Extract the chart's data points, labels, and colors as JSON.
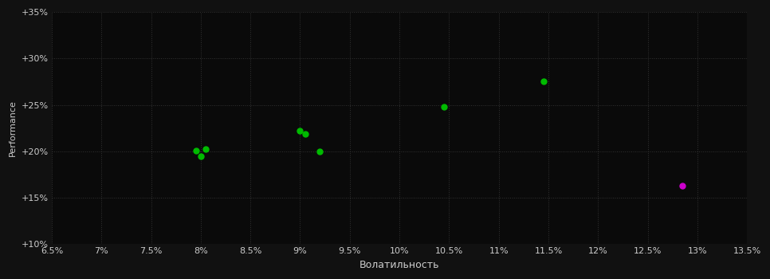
{
  "background_color": "#111111",
  "plot_bg_color": "#0a0a0a",
  "left_bg_color": "#1e1e1e",
  "grid_color": "#333333",
  "text_color": "#cccccc",
  "xlabel": "Волатильность",
  "ylabel": "Performance",
  "xlim": [
    0.065,
    0.135
  ],
  "ylim": [
    0.1,
    0.35
  ],
  "xticks": [
    0.065,
    0.07,
    0.075,
    0.08,
    0.085,
    0.09,
    0.095,
    0.1,
    0.105,
    0.11,
    0.115,
    0.12,
    0.125,
    0.13,
    0.135
  ],
  "xtick_labels": [
    "6.5%",
    "7%",
    "7.5%",
    "8%",
    "8.5%",
    "9%",
    "9.5%",
    "10%",
    "10.5%",
    "11%",
    "11.5%",
    "12%",
    "12.5%",
    "13%",
    "13.5%"
  ],
  "yticks": [
    0.1,
    0.15,
    0.2,
    0.25,
    0.3,
    0.35
  ],
  "ytick_labels": [
    "+10%",
    "+15%",
    "+20%",
    "+25%",
    "+30%",
    "+35%"
  ],
  "green_points": [
    [
      0.0795,
      0.201
    ],
    [
      0.0805,
      0.202
    ],
    [
      0.08,
      0.195
    ],
    [
      0.09,
      0.222
    ],
    [
      0.0905,
      0.219
    ],
    [
      0.092,
      0.2
    ],
    [
      0.1045,
      0.248
    ],
    [
      0.1145,
      0.275
    ]
  ],
  "magenta_points": [
    [
      0.1285,
      0.163
    ]
  ],
  "point_size": 25,
  "green_color": "#00bb00",
  "magenta_color": "#cc00cc",
  "axis_fontsize": 9,
  "tick_fontsize": 8,
  "ylabel_fontsize": 8
}
